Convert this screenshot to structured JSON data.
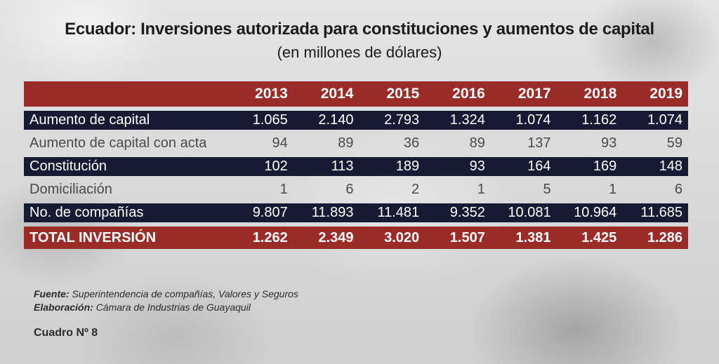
{
  "chart_data": {
    "type": "table",
    "title": "Ecuador: Inversiones autorizada para constituciones y aumentos de capital",
    "subtitle": "(en millones de dólares)",
    "columns": [
      "2013",
      "2014",
      "2015",
      "2016",
      "2017",
      "2018",
      "2019"
    ],
    "rows": [
      {
        "label": "Aumento de capital",
        "style": "dark",
        "values": [
          "1.065",
          "2.140",
          "2.793",
          "1.324",
          "1.074",
          "1.162",
          "1.074"
        ]
      },
      {
        "label": "Aumento de capital con acta",
        "style": "light",
        "values": [
          "94",
          "89",
          "36",
          "89",
          "137",
          "93",
          "59"
        ]
      },
      {
        "label": "Constitución",
        "style": "dark",
        "values": [
          "102",
          "113",
          "189",
          "93",
          "164",
          "169",
          "148"
        ]
      },
      {
        "label": "Domiciliación",
        "style": "light",
        "values": [
          "1",
          "6",
          "2",
          "1",
          "5",
          "1",
          "6"
        ]
      },
      {
        "label": "No. de compañías",
        "style": "dark",
        "values": [
          "9.807",
          "11.893",
          "11.481",
          "9.352",
          "10.081",
          "10.964",
          "11.685"
        ]
      },
      {
        "label": "TOTAL INVERSIÓN",
        "style": "total",
        "values": [
          "1.262",
          "2.349",
          "3.020",
          "1.507",
          "1.381",
          "1.425",
          "1.286"
        ]
      }
    ]
  },
  "notes": {
    "fuente_label": "Fuente:",
    "fuente_text": "Superintendencia de compañías, Valores y Seguros",
    "elaboracion_label": "Elaboración:",
    "elaboracion_text": "Cámara de Industrias de Guayaquil",
    "cuadro": "Cuadro Nº 8"
  },
  "colors": {
    "header_red": "#9b2b27",
    "row_navy": "#161a33"
  }
}
